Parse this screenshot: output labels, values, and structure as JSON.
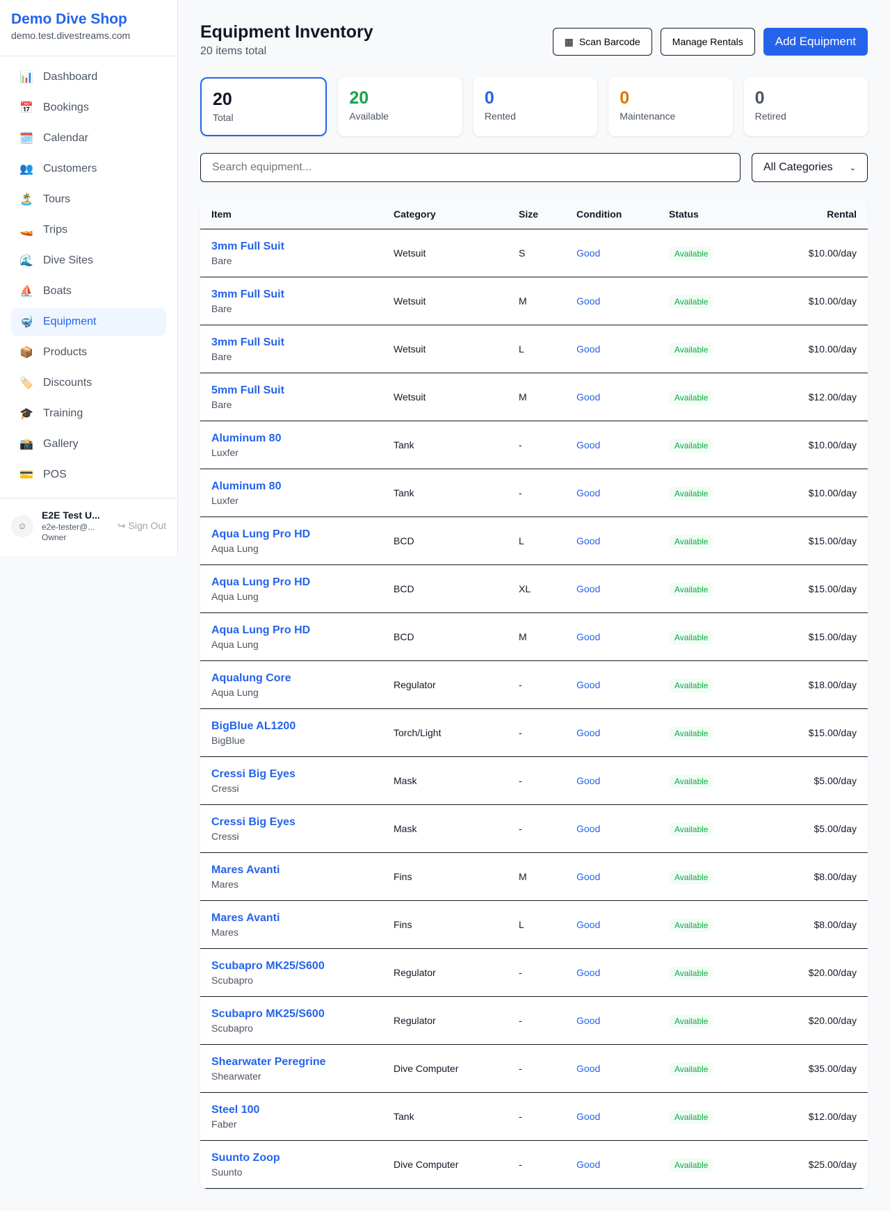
{
  "sidebar": {
    "brand": "Demo Dive Shop",
    "domain": "demo.test.divestreams.com",
    "items": [
      {
        "label": "Dashboard",
        "icon": "📊"
      },
      {
        "label": "Bookings",
        "icon": "📅"
      },
      {
        "label": "Calendar",
        "icon": "🗓️"
      },
      {
        "label": "Customers",
        "icon": "👥"
      },
      {
        "label": "Tours",
        "icon": "🏝️"
      },
      {
        "label": "Trips",
        "icon": "🚤"
      },
      {
        "label": "Dive Sites",
        "icon": "🌊"
      },
      {
        "label": "Boats",
        "icon": "⛵"
      },
      {
        "label": "Equipment",
        "icon": "🤿",
        "active": true
      },
      {
        "label": "Products",
        "icon": "📦"
      },
      {
        "label": "Discounts",
        "icon": "🏷️"
      },
      {
        "label": "Training",
        "icon": "🎓"
      },
      {
        "label": "Gallery",
        "icon": "📸"
      },
      {
        "label": "POS",
        "icon": "💳"
      }
    ],
    "user": {
      "name": "E2E Test U...",
      "email": "e2e-tester@...",
      "role": "Owner",
      "signout": "Sign Out"
    }
  },
  "header": {
    "title": "Equipment Inventory",
    "subtitle": "20 items total",
    "scan": "Scan Barcode",
    "manage": "Manage Rentals",
    "add": "Add Equipment"
  },
  "stats": [
    {
      "value": "20",
      "label": "Total",
      "color": "#111827"
    },
    {
      "value": "20",
      "label": "Available",
      "color": "#16a34a"
    },
    {
      "value": "0",
      "label": "Rented",
      "color": "#2563eb"
    },
    {
      "value": "0",
      "label": "Maintenance",
      "color": "#d97706"
    },
    {
      "value": "0",
      "label": "Retired",
      "color": "#4b5563"
    }
  ],
  "filters": {
    "search_placeholder": "Search equipment...",
    "category": "All Categories"
  },
  "table": {
    "headers": [
      "Item",
      "Category",
      "Size",
      "Condition",
      "Status",
      "Rental"
    ],
    "rows": [
      [
        "3mm Full Suit",
        "Bare",
        "Wetsuit",
        "S",
        "Good",
        "Available",
        "$10.00/day"
      ],
      [
        "3mm Full Suit",
        "Bare",
        "Wetsuit",
        "M",
        "Good",
        "Available",
        "$10.00/day"
      ],
      [
        "3mm Full Suit",
        "Bare",
        "Wetsuit",
        "L",
        "Good",
        "Available",
        "$10.00/day"
      ],
      [
        "5mm Full Suit",
        "Bare",
        "Wetsuit",
        "M",
        "Good",
        "Available",
        "$12.00/day"
      ],
      [
        "Aluminum 80",
        "Luxfer",
        "Tank",
        "-",
        "Good",
        "Available",
        "$10.00/day"
      ],
      [
        "Aluminum 80",
        "Luxfer",
        "Tank",
        "-",
        "Good",
        "Available",
        "$10.00/day"
      ],
      [
        "Aqua Lung Pro HD",
        "Aqua Lung",
        "BCD",
        "L",
        "Good",
        "Available",
        "$15.00/day"
      ],
      [
        "Aqua Lung Pro HD",
        "Aqua Lung",
        "BCD",
        "XL",
        "Good",
        "Available",
        "$15.00/day"
      ],
      [
        "Aqua Lung Pro HD",
        "Aqua Lung",
        "BCD",
        "M",
        "Good",
        "Available",
        "$15.00/day"
      ],
      [
        "Aqualung Core",
        "Aqua Lung",
        "Regulator",
        "-",
        "Good",
        "Available",
        "$18.00/day"
      ],
      [
        "BigBlue AL1200",
        "BigBlue",
        "Torch/Light",
        "-",
        "Good",
        "Available",
        "$15.00/day"
      ],
      [
        "Cressi Big Eyes",
        "Cressi",
        "Mask",
        "-",
        "Good",
        "Available",
        "$5.00/day"
      ],
      [
        "Cressi Big Eyes",
        "Cressi",
        "Mask",
        "-",
        "Good",
        "Available",
        "$5.00/day"
      ],
      [
        "Mares Avanti",
        "Mares",
        "Fins",
        "M",
        "Good",
        "Available",
        "$8.00/day"
      ],
      [
        "Mares Avanti",
        "Mares",
        "Fins",
        "L",
        "Good",
        "Available",
        "$8.00/day"
      ],
      [
        "Scubapro MK25/S600",
        "Scubapro",
        "Regulator",
        "-",
        "Good",
        "Available",
        "$20.00/day"
      ],
      [
        "Scubapro MK25/S600",
        "Scubapro",
        "Regulator",
        "-",
        "Good",
        "Available",
        "$20.00/day"
      ],
      [
        "Shearwater Peregrine",
        "Shearwater",
        "Dive Computer",
        "-",
        "Good",
        "Available",
        "$35.00/day"
      ],
      [
        "Steel 100",
        "Faber",
        "Tank",
        "-",
        "Good",
        "Available",
        "$12.00/day"
      ],
      [
        "Suunto Zoop",
        "Suunto",
        "Dive Computer",
        "-",
        "Good",
        "Available",
        "$25.00/day"
      ]
    ]
  }
}
